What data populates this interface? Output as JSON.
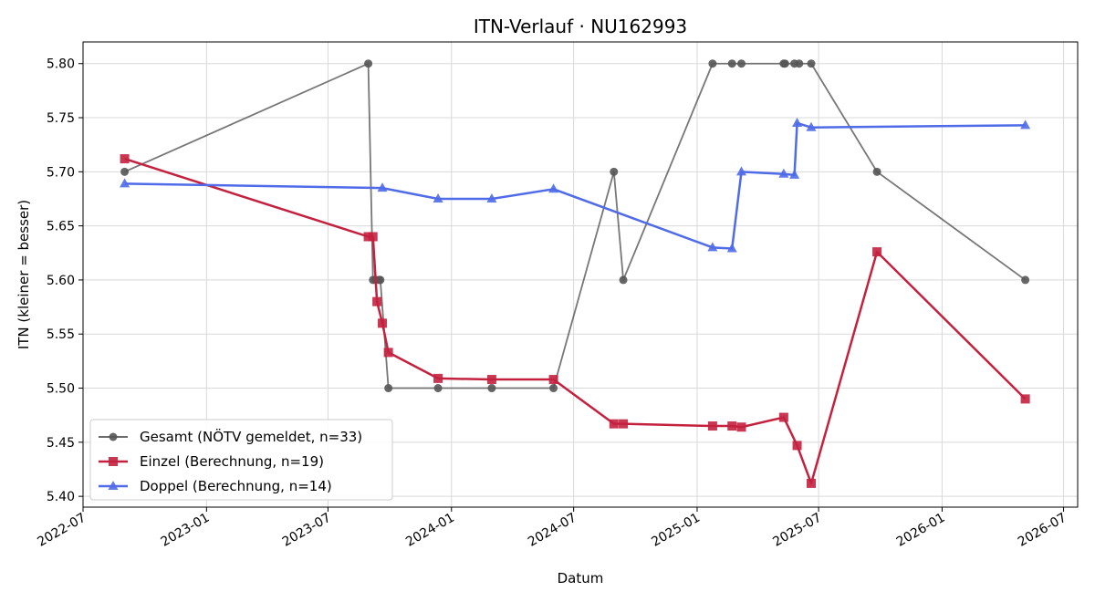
{
  "chart_data": {
    "type": "line",
    "title": "ITN-Verlauf · NU162993",
    "xlabel": "Datum",
    "ylabel": "ITN  (kleiner = besser)",
    "xlim": [
      "2022-07-01",
      "2026-07-22"
    ],
    "ylim": [
      5.39,
      5.82
    ],
    "grid": true,
    "legend_position": "lower-left",
    "x_ticks": [
      "2022-07",
      "2023-01",
      "2023-07",
      "2024-01",
      "2024-07",
      "2025-01",
      "2025-07",
      "2026-01",
      "2026-07"
    ],
    "y_ticks": [
      "5.40",
      "5.45",
      "5.50",
      "5.55",
      "5.60",
      "5.65",
      "5.70",
      "5.75",
      "5.80"
    ],
    "series": [
      {
        "name": "Gesamt (NÖTV gemeldet, n=33)",
        "color": "#555555",
        "marker": "circle",
        "points": [
          [
            "2022-09-01",
            5.7
          ],
          [
            "2023-08-30",
            5.8
          ],
          [
            "2023-09-06",
            5.6
          ],
          [
            "2023-09-10",
            5.6
          ],
          [
            "2023-09-15",
            5.6
          ],
          [
            "2023-09-17",
            5.6
          ],
          [
            "2023-09-29",
            5.5
          ],
          [
            "2023-12-12",
            5.5
          ],
          [
            "2024-03-01",
            5.5
          ],
          [
            "2024-06-01",
            5.5
          ],
          [
            "2024-08-30",
            5.7
          ],
          [
            "2024-09-13",
            5.6
          ],
          [
            "2025-01-24",
            5.8
          ],
          [
            "2025-02-22",
            5.8
          ],
          [
            "2025-03-08",
            5.8
          ],
          [
            "2025-05-10",
            5.8
          ],
          [
            "2025-05-12",
            5.8
          ],
          [
            "2025-05-26",
            5.8
          ],
          [
            "2025-06-02",
            5.8
          ],
          [
            "2025-06-20",
            5.8
          ],
          [
            "2025-09-26",
            5.7
          ],
          [
            "2026-05-05",
            5.6
          ]
        ]
      },
      {
        "name": "Einzel (Berechnung, n=19)",
        "color": "#c4213f",
        "marker": "square",
        "points": [
          [
            "2022-09-01",
            5.712
          ],
          [
            "2023-08-30",
            5.64
          ],
          [
            "2023-09-06",
            5.64
          ],
          [
            "2023-09-12",
            5.58
          ],
          [
            "2023-09-20",
            5.56
          ],
          [
            "2023-09-29",
            5.533
          ],
          [
            "2023-12-12",
            5.509
          ],
          [
            "2024-03-01",
            5.508
          ],
          [
            "2024-06-01",
            5.508
          ],
          [
            "2024-08-30",
            5.467
          ],
          [
            "2024-09-13",
            5.467
          ],
          [
            "2025-01-24",
            5.465
          ],
          [
            "2025-02-22",
            5.465
          ],
          [
            "2025-03-08",
            5.464
          ],
          [
            "2025-05-10",
            5.473
          ],
          [
            "2025-05-30",
            5.447
          ],
          [
            "2025-06-20",
            5.412
          ],
          [
            "2025-09-26",
            5.626
          ],
          [
            "2026-05-05",
            5.49
          ]
        ]
      },
      {
        "name": "Doppel (Berechnung, n=14)",
        "color": "#4f6be8",
        "marker": "triangle",
        "points": [
          [
            "2022-09-01",
            5.689
          ],
          [
            "2023-09-20",
            5.685
          ],
          [
            "2023-12-12",
            5.675
          ],
          [
            "2024-03-01",
            5.675
          ],
          [
            "2024-06-01",
            5.684
          ],
          [
            "2025-01-24",
            5.63
          ],
          [
            "2025-02-22",
            5.629
          ],
          [
            "2025-03-08",
            5.7
          ],
          [
            "2025-05-10",
            5.698
          ],
          [
            "2025-05-26",
            5.697
          ],
          [
            "2025-05-30",
            5.745
          ],
          [
            "2025-06-20",
            5.741
          ],
          [
            "2026-05-05",
            5.743
          ]
        ]
      }
    ]
  }
}
